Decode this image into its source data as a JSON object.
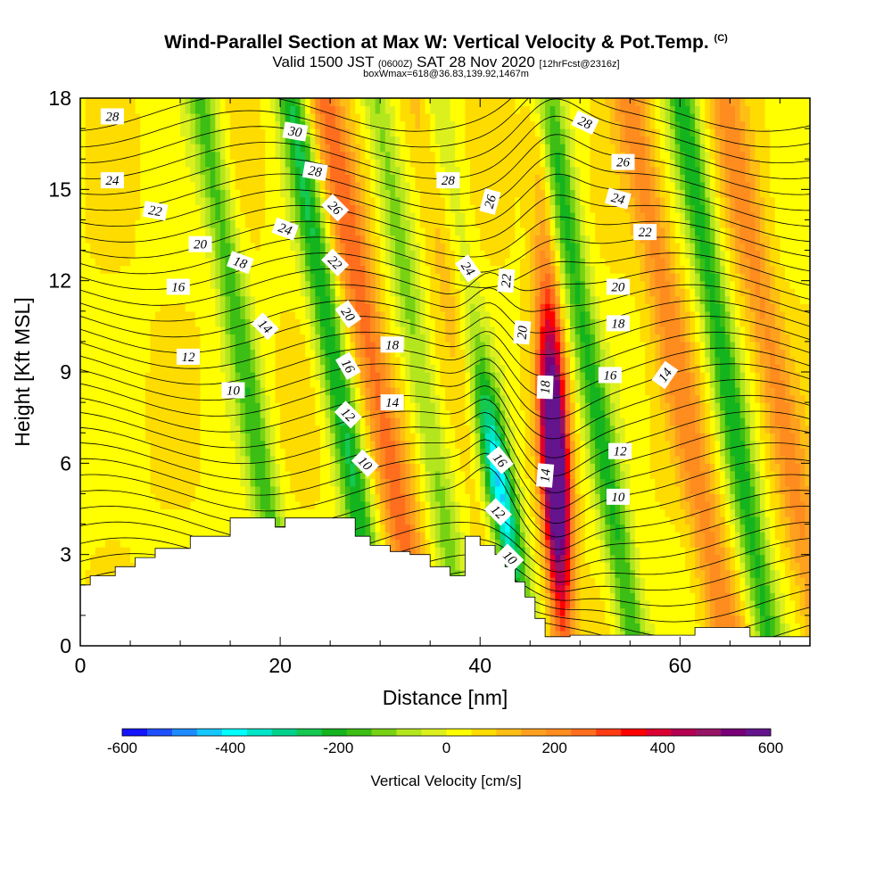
{
  "chart_data": {
    "type": "heatmap",
    "title": "Wind-Parallel Section at Max W: Vertical Velocity & Pot.Temp.",
    "title_mark": "(C)",
    "subtitle": {
      "prefix": "Valid 1500 JST",
      "utc": "(0600Z)",
      "date": "SAT 28 Nov 2020",
      "forecast": "[12hrFcst@2316z]"
    },
    "box_info": "boxWmax=618@36.83,139.92,1467m",
    "xlabel": "Distance [nm]",
    "ylabel": "Height [Kft MSL]",
    "xlim": [
      0,
      73
    ],
    "ylim": [
      0,
      18
    ],
    "xticks": [
      0,
      20,
      40,
      60
    ],
    "yticks": [
      0,
      3,
      6,
      9,
      12,
      15,
      18
    ],
    "colorbar": {
      "label": "Vertical Velocity [cm/s]",
      "min": -600,
      "max": 600,
      "ticks": [
        -600,
        -400,
        -200,
        0,
        200,
        400,
        600
      ],
      "colors": [
        "#1414ff",
        "#1e50ff",
        "#1e8cff",
        "#14c8ff",
        "#00ffff",
        "#00e6c8",
        "#00d28c",
        "#14c850",
        "#14b41e",
        "#3cbe14",
        "#78d214",
        "#b4e61e",
        "#dcf01e",
        "#ffff00",
        "#ffdc00",
        "#ffbe14",
        "#ffa01e",
        "#ff8c1e",
        "#ff6e1e",
        "#ff3c14",
        "#ff0000",
        "#dc0032",
        "#b40050",
        "#961464",
        "#780078",
        "#64148c"
      ]
    },
    "updraft_bands": [
      {
        "x": 31.0,
        "peak_cm_s": 220
      },
      {
        "x": 40.3,
        "peak_cm_s": 90
      },
      {
        "x": 47.5,
        "peak_cm_s": 618
      },
      {
        "x": 61.5,
        "peak_cm_s": 160
      },
      {
        "x": 71.0,
        "peak_cm_s": 150
      }
    ],
    "downdraft_bands": [
      {
        "x": 18.0,
        "peak_cm_s": -200
      },
      {
        "x": 27.0,
        "peak_cm_s": -260
      },
      {
        "x": 35.5,
        "peak_cm_s": -150
      },
      {
        "x": 41.5,
        "peak_cm_s": -430
      },
      {
        "x": 52.5,
        "peak_cm_s": -230
      },
      {
        "x": 66.0,
        "peak_cm_s": -240
      }
    ],
    "terrain": [
      {
        "x": 0,
        "h": 2.0
      },
      {
        "x": 1,
        "h": 2.3
      },
      {
        "x": 3.5,
        "h": 2.6
      },
      {
        "x": 5.5,
        "h": 2.9
      },
      {
        "x": 7.5,
        "h": 3.2
      },
      {
        "x": 11,
        "h": 3.6
      },
      {
        "x": 15,
        "h": 4.2
      },
      {
        "x": 19.5,
        "h": 3.9
      },
      {
        "x": 20.5,
        "h": 4.2
      },
      {
        "x": 27.5,
        "h": 3.6
      },
      {
        "x": 29,
        "h": 3.3
      },
      {
        "x": 31,
        "h": 3.1
      },
      {
        "x": 33,
        "h": 3.0
      },
      {
        "x": 35,
        "h": 2.6
      },
      {
        "x": 37,
        "h": 2.3
      },
      {
        "x": 38.5,
        "h": 3.6
      },
      {
        "x": 40,
        "h": 3.3
      },
      {
        "x": 41.5,
        "h": 3.0
      },
      {
        "x": 42.5,
        "h": 2.6
      },
      {
        "x": 43.5,
        "h": 2.1
      },
      {
        "x": 44.5,
        "h": 1.6
      },
      {
        "x": 45.5,
        "h": 0.9
      },
      {
        "x": 46.5,
        "h": 0.3
      },
      {
        "x": 49,
        "h": 0.35
      },
      {
        "x": 54,
        "h": 0.35
      },
      {
        "x": 60,
        "h": 0.35
      },
      {
        "x": 61.5,
        "h": 0.6
      },
      {
        "x": 66,
        "h": 0.6
      },
      {
        "x": 67,
        "h": 0.3
      },
      {
        "x": 73,
        "h": 0.3
      }
    ],
    "contour_labels": [
      {
        "text": "28",
        "x": 3.2,
        "y": 17.4,
        "rot": 0
      },
      {
        "text": "24",
        "x": 3.2,
        "y": 15.3,
        "rot": 0
      },
      {
        "text": "22",
        "x": 7.5,
        "y": 14.3,
        "rot": 10
      },
      {
        "text": "20",
        "x": 12,
        "y": 13.2,
        "rot": 0
      },
      {
        "text": "18",
        "x": 16,
        "y": 12.6,
        "rot": 20
      },
      {
        "text": "16",
        "x": 9.8,
        "y": 11.8,
        "rot": 0
      },
      {
        "text": "14",
        "x": 18.5,
        "y": 10.5,
        "rot": 45
      },
      {
        "text": "12",
        "x": 10.8,
        "y": 9.5,
        "rot": 0
      },
      {
        "text": "10",
        "x": 15.3,
        "y": 8.4,
        "rot": 0
      },
      {
        "text": "30",
        "x": 21.5,
        "y": 16.9,
        "rot": 10
      },
      {
        "text": "28",
        "x": 23.5,
        "y": 15.6,
        "rot": 10
      },
      {
        "text": "24",
        "x": 20.5,
        "y": 13.7,
        "rot": 20
      },
      {
        "text": "26",
        "x": 25.5,
        "y": 14.4,
        "rot": 45
      },
      {
        "text": "22",
        "x": 25.5,
        "y": 12.6,
        "rot": 45
      },
      {
        "text": "20",
        "x": 26.8,
        "y": 10.9,
        "rot": 55
      },
      {
        "text": "16",
        "x": 26.8,
        "y": 9.2,
        "rot": 60
      },
      {
        "text": "12",
        "x": 26.8,
        "y": 7.6,
        "rot": 45
      },
      {
        "text": "10",
        "x": 28.5,
        "y": 6.0,
        "rot": 45
      },
      {
        "text": "18",
        "x": 31.2,
        "y": 9.9,
        "rot": 0
      },
      {
        "text": "14",
        "x": 31.2,
        "y": 8.0,
        "rot": 0
      },
      {
        "text": "28",
        "x": 36.8,
        "y": 15.3,
        "rot": 0
      },
      {
        "text": "26",
        "x": 41.0,
        "y": 14.6,
        "rot": -75
      },
      {
        "text": "24",
        "x": 38.8,
        "y": 12.4,
        "rot": 55
      },
      {
        "text": "22",
        "x": 42.6,
        "y": 12.0,
        "rot": -85
      },
      {
        "text": "20",
        "x": 44.2,
        "y": 10.3,
        "rot": -85
      },
      {
        "text": "18",
        "x": 46.5,
        "y": 8.5,
        "rot": -88
      },
      {
        "text": "16",
        "x": 42.0,
        "y": 6.1,
        "rot": 50
      },
      {
        "text": "14",
        "x": 46.5,
        "y": 5.6,
        "rot": -85
      },
      {
        "text": "12",
        "x": 41.8,
        "y": 4.4,
        "rot": 45
      },
      {
        "text": "10",
        "x": 43.0,
        "y": 2.9,
        "rot": 45
      },
      {
        "text": "28",
        "x": 50.5,
        "y": 17.2,
        "rot": 25
      },
      {
        "text": "26",
        "x": 54.3,
        "y": 15.9,
        "rot": 0
      },
      {
        "text": "24",
        "x": 53.8,
        "y": 14.7,
        "rot": 15
      },
      {
        "text": "22",
        "x": 56.5,
        "y": 13.6,
        "rot": 0
      },
      {
        "text": "20",
        "x": 53.8,
        "y": 11.8,
        "rot": 0
      },
      {
        "text": "18",
        "x": 53.8,
        "y": 10.6,
        "rot": 0
      },
      {
        "text": "16",
        "x": 53.0,
        "y": 8.9,
        "rot": 0
      },
      {
        "text": "14",
        "x": 58.5,
        "y": 8.9,
        "rot": -55
      },
      {
        "text": "12",
        "x": 54.0,
        "y": 6.4,
        "rot": 0
      },
      {
        "text": "10",
        "x": 53.8,
        "y": 4.9,
        "rot": 0
      }
    ]
  }
}
